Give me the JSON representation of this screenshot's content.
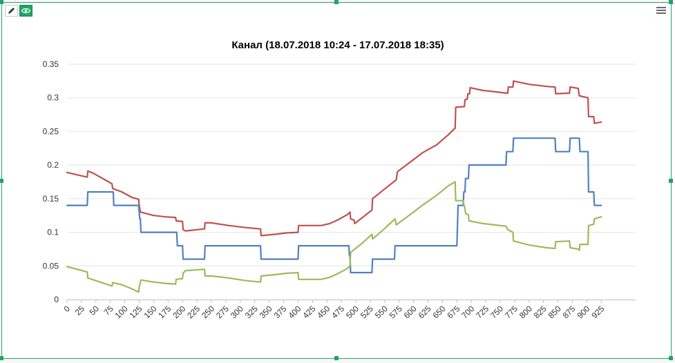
{
  "chart_data": {
    "type": "line",
    "title": "Канал (18.07.2018 10:24 - 17.07.2018 18:35)",
    "xlabel": "",
    "ylabel": "",
    "xlim": [
      0,
      940
    ],
    "ylim": [
      0,
      0.35
    ],
    "grid": true,
    "legend": "none",
    "yticks": [
      0,
      0.05,
      0.1,
      0.15,
      0.2,
      0.25,
      0.3,
      0.35
    ],
    "ytick_labels": [
      "0",
      "0.05",
      "0.1",
      "0.15",
      "0.2",
      "0.25",
      "0.3",
      "0.35"
    ],
    "xticks": [
      0,
      25,
      50,
      75,
      100,
      125,
      150,
      175,
      200,
      225,
      250,
      275,
      300,
      325,
      350,
      375,
      400,
      425,
      450,
      475,
      500,
      525,
      550,
      575,
      600,
      625,
      650,
      675,
      700,
      725,
      750,
      775,
      800,
      825,
      850,
      875,
      900,
      925
    ],
    "xtick_labels": [
      "0",
      "25",
      "50",
      "75",
      "100",
      "125",
      "150",
      "175",
      "200",
      "225",
      "250",
      "275",
      "300",
      "325",
      "350",
      "375",
      "400",
      "425",
      "450",
      "475",
      "500",
      "525",
      "550",
      "575",
      "600",
      "625",
      "650",
      "675",
      "700",
      "725",
      "750",
      "775",
      "800",
      "825",
      "850",
      "875",
      "900",
      "925"
    ],
    "series": [
      {
        "color": "#c0504d",
        "points": [
          [
            0,
            0.189
          ],
          [
            35,
            0.182
          ],
          [
            36,
            0.191
          ],
          [
            45,
            0.188
          ],
          [
            70,
            0.176
          ],
          [
            78,
            0.172
          ],
          [
            79,
            0.165
          ],
          [
            95,
            0.16
          ],
          [
            112,
            0.152
          ],
          [
            124,
            0.149
          ],
          [
            125,
            0.14
          ],
          [
            127,
            0.13
          ],
          [
            150,
            0.125
          ],
          [
            170,
            0.123
          ],
          [
            188,
            0.122
          ],
          [
            189,
            0.117
          ],
          [
            200,
            0.116
          ],
          [
            201,
            0.104
          ],
          [
            205,
            0.102
          ],
          [
            238,
            0.105
          ],
          [
            239,
            0.114
          ],
          [
            250,
            0.114
          ],
          [
            280,
            0.11
          ],
          [
            310,
            0.107
          ],
          [
            335,
            0.105
          ],
          [
            336,
            0.095
          ],
          [
            360,
            0.097
          ],
          [
            380,
            0.099
          ],
          [
            400,
            0.1
          ],
          [
            401,
            0.11
          ],
          [
            440,
            0.11
          ],
          [
            455,
            0.113
          ],
          [
            468,
            0.118
          ],
          [
            485,
            0.126
          ],
          [
            490,
            0.13
          ],
          [
            491,
            0.12
          ],
          [
            497,
            0.118
          ],
          [
            498,
            0.113
          ],
          [
            510,
            0.121
          ],
          [
            528,
            0.133
          ],
          [
            529,
            0.15
          ],
          [
            548,
            0.163
          ],
          [
            570,
            0.178
          ],
          [
            572,
            0.19
          ],
          [
            600,
            0.208
          ],
          [
            615,
            0.218
          ],
          [
            640,
            0.23
          ],
          [
            660,
            0.245
          ],
          [
            672,
            0.255
          ],
          [
            673,
            0.286
          ],
          [
            688,
            0.287
          ],
          [
            689,
            0.297
          ],
          [
            693,
            0.298
          ],
          [
            694,
            0.306
          ],
          [
            697,
            0.306
          ],
          [
            698,
            0.315
          ],
          [
            720,
            0.311
          ],
          [
            740,
            0.309
          ],
          [
            760,
            0.307
          ],
          [
            763,
            0.307
          ],
          [
            764,
            0.316
          ],
          [
            772,
            0.316
          ],
          [
            773,
            0.325
          ],
          [
            800,
            0.32
          ],
          [
            830,
            0.317
          ],
          [
            845,
            0.316
          ],
          [
            846,
            0.306
          ],
          [
            870,
            0.307
          ],
          [
            871,
            0.316
          ],
          [
            885,
            0.314
          ],
          [
            887,
            0.303
          ],
          [
            902,
            0.3
          ],
          [
            903,
            0.272
          ],
          [
            912,
            0.272
          ],
          [
            913,
            0.262
          ],
          [
            925,
            0.264
          ]
        ]
      },
      {
        "color": "#4f81bd",
        "points": [
          [
            0,
            0.14
          ],
          [
            35,
            0.14
          ],
          [
            36,
            0.16
          ],
          [
            80,
            0.16
          ],
          [
            81,
            0.14
          ],
          [
            124,
            0.14
          ],
          [
            125,
            0.13
          ],
          [
            126,
            0.12
          ],
          [
            127,
            0.12
          ],
          [
            128,
            0.1
          ],
          [
            190,
            0.1
          ],
          [
            191,
            0.08
          ],
          [
            200,
            0.08
          ],
          [
            201,
            0.06
          ],
          [
            238,
            0.06
          ],
          [
            239,
            0.08
          ],
          [
            335,
            0.08
          ],
          [
            336,
            0.06
          ],
          [
            400,
            0.06
          ],
          [
            401,
            0.08
          ],
          [
            488,
            0.08
          ],
          [
            489,
            0.065
          ],
          [
            490,
            0.065
          ],
          [
            491,
            0.04
          ],
          [
            528,
            0.04
          ],
          [
            529,
            0.06
          ],
          [
            567,
            0.06
          ],
          [
            568,
            0.08
          ],
          [
            675,
            0.08
          ],
          [
            677,
            0.14
          ],
          [
            686,
            0.14
          ],
          [
            687,
            0.16
          ],
          [
            689,
            0.16
          ],
          [
            690,
            0.18
          ],
          [
            695,
            0.18
          ],
          [
            696,
            0.2
          ],
          [
            760,
            0.2
          ],
          [
            761,
            0.22
          ],
          [
            772,
            0.22
          ],
          [
            773,
            0.24
          ],
          [
            845,
            0.24
          ],
          [
            846,
            0.22
          ],
          [
            870,
            0.22
          ],
          [
            871,
            0.24
          ],
          [
            887,
            0.24
          ],
          [
            888,
            0.22
          ],
          [
            902,
            0.22
          ],
          [
            903,
            0.16
          ],
          [
            912,
            0.16
          ],
          [
            913,
            0.14
          ],
          [
            925,
            0.14
          ]
        ]
      },
      {
        "color": "#9bbb59",
        "points": [
          [
            0,
            0.049
          ],
          [
            35,
            0.041
          ],
          [
            36,
            0.032
          ],
          [
            60,
            0.025
          ],
          [
            78,
            0.02
          ],
          [
            79,
            0.025
          ],
          [
            95,
            0.022
          ],
          [
            112,
            0.016
          ],
          [
            124,
            0.011
          ],
          [
            125,
            0.02
          ],
          [
            126,
            0.021
          ],
          [
            127,
            0.026
          ],
          [
            128,
            0.029
          ],
          [
            150,
            0.026
          ],
          [
            170,
            0.024
          ],
          [
            188,
            0.023
          ],
          [
            189,
            0.03
          ],
          [
            200,
            0.031
          ],
          [
            201,
            0.039
          ],
          [
            205,
            0.043
          ],
          [
            238,
            0.045
          ],
          [
            239,
            0.035
          ],
          [
            250,
            0.035
          ],
          [
            280,
            0.032
          ],
          [
            310,
            0.028
          ],
          [
            335,
            0.026
          ],
          [
            336,
            0.035
          ],
          [
            360,
            0.037
          ],
          [
            380,
            0.039
          ],
          [
            400,
            0.04
          ],
          [
            401,
            0.03
          ],
          [
            440,
            0.03
          ],
          [
            455,
            0.033
          ],
          [
            470,
            0.039
          ],
          [
            485,
            0.046
          ],
          [
            490,
            0.05
          ],
          [
            491,
            0.07
          ],
          [
            510,
            0.083
          ],
          [
            528,
            0.097
          ],
          [
            529,
            0.09
          ],
          [
            548,
            0.104
          ],
          [
            568,
            0.12
          ],
          [
            570,
            0.111
          ],
          [
            600,
            0.13
          ],
          [
            615,
            0.14
          ],
          [
            640,
            0.155
          ],
          [
            660,
            0.169
          ],
          [
            672,
            0.175
          ],
          [
            673,
            0.147
          ],
          [
            686,
            0.147
          ],
          [
            687,
            0.141
          ],
          [
            689,
            0.136
          ],
          [
            690,
            0.128
          ],
          [
            695,
            0.126
          ],
          [
            696,
            0.117
          ],
          [
            720,
            0.113
          ],
          [
            740,
            0.111
          ],
          [
            760,
            0.109
          ],
          [
            763,
            0.104
          ],
          [
            772,
            0.1
          ],
          [
            773,
            0.087
          ],
          [
            800,
            0.081
          ],
          [
            830,
            0.077
          ],
          [
            845,
            0.076
          ],
          [
            846,
            0.086
          ],
          [
            870,
            0.087
          ],
          [
            871,
            0.077
          ],
          [
            885,
            0.075
          ],
          [
            887,
            0.073
          ],
          [
            888,
            0.082
          ],
          [
            902,
            0.082
          ],
          [
            903,
            0.11
          ],
          [
            912,
            0.112
          ],
          [
            913,
            0.12
          ],
          [
            925,
            0.123
          ]
        ]
      }
    ]
  }
}
